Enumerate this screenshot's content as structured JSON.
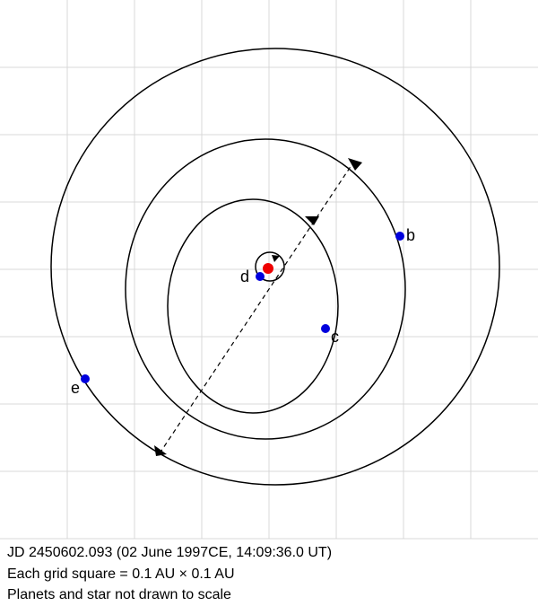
{
  "planets": [
    {
      "label": "b"
    },
    {
      "label": "c"
    },
    {
      "label": "d"
    },
    {
      "label": "e"
    }
  ],
  "caption": [
    "JD 2450602.093 (02 June 1997CE, 14:09:36.0 UT)",
    "Each grid square = 0.1 AU × 0.1 AU",
    "Planets and star not drawn to scale"
  ]
}
